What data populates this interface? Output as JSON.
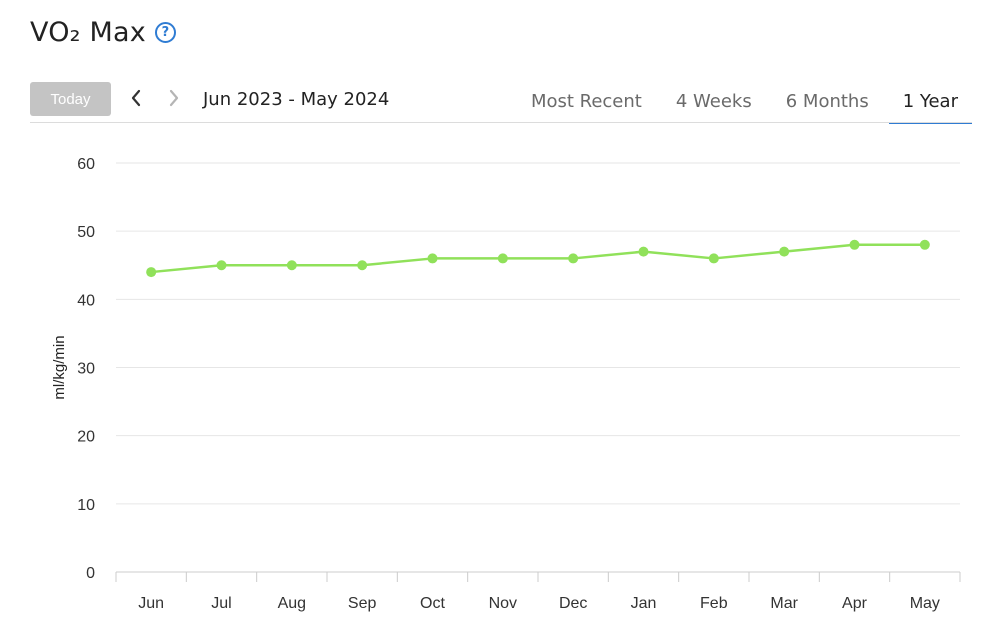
{
  "header": {
    "title": "VO₂ Max",
    "help_icon": "question-circle-icon"
  },
  "toolbar": {
    "today_label": "Today",
    "prev_icon": "chevron-left-icon",
    "next_icon": "chevron-right-icon",
    "range_label": "Jun 2023 - May 2024",
    "tabs": [
      {
        "label": "Most Recent",
        "active": false
      },
      {
        "label": "4 Weeks",
        "active": false
      },
      {
        "label": "6 Months",
        "active": false
      },
      {
        "label": "1 Year",
        "active": true
      }
    ]
  },
  "colors": {
    "accent": "#2f7cd3",
    "series": "#90e15a",
    "today_button": "#c4c4c4"
  },
  "chart_data": {
    "type": "line",
    "categories": [
      "Jun",
      "Jul",
      "Aug",
      "Sep",
      "Oct",
      "Nov",
      "Dec",
      "Jan",
      "Feb",
      "Mar",
      "Apr",
      "May"
    ],
    "series": [
      {
        "values": [
          44,
          45,
          45,
          45,
          46,
          46,
          46,
          47,
          46,
          47,
          48,
          48
        ]
      }
    ],
    "ylabel": "ml/kg/min",
    "ylim": [
      0,
      60
    ],
    "yticks": [
      0,
      10,
      20,
      30,
      40,
      50,
      60
    ],
    "grid": true
  }
}
